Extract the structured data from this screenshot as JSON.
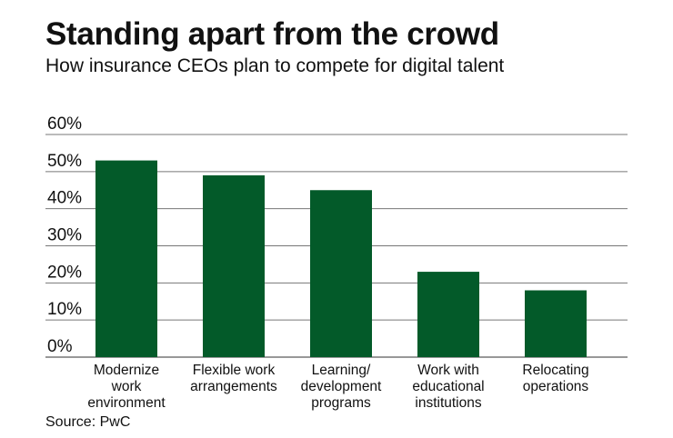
{
  "title": "Standing apart from the crowd",
  "subtitle": "How insurance CEOs plan to compete for digital talent",
  "source": "Source: PwC",
  "chart_data": {
    "type": "bar",
    "title": "Standing apart from the crowd",
    "subtitle": "How insurance CEOs plan to compete for digital talent",
    "categories": [
      [
        "Modernize",
        "work",
        "environment"
      ],
      [
        "Flexible work",
        "arrangements"
      ],
      [
        "Learning/",
        "development",
        "programs"
      ],
      [
        "Work with",
        "educational",
        "institutions"
      ],
      [
        "Relocating",
        "operations"
      ]
    ],
    "values": [
      53,
      49,
      45,
      23,
      18
    ],
    "ylim": [
      0,
      60
    ],
    "yticks": [
      "0%",
      "10%",
      "20%",
      "30%",
      "40%",
      "50%",
      "60%"
    ],
    "grid": true,
    "colors": {
      "bar": "#035a29",
      "grid": "#777777"
    }
  }
}
